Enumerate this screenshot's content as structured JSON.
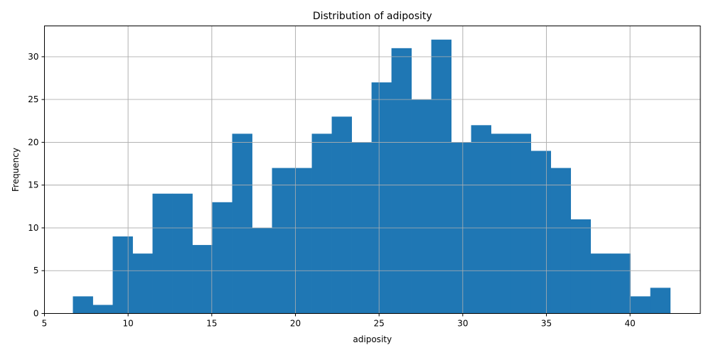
{
  "chart_data": {
    "type": "bar",
    "title": "Distribution of adiposity",
    "xlabel": "adiposity",
    "ylabel": "Frequency",
    "bin_edges": [
      6.7,
      7.89,
      9.08,
      10.27,
      11.46,
      12.65,
      13.84,
      15.03,
      16.22,
      17.41,
      18.6,
      19.79,
      20.98,
      22.17,
      23.36,
      24.55,
      25.74,
      26.93,
      28.12,
      29.31,
      30.5,
      31.69,
      32.88,
      34.07,
      35.26,
      36.45,
      37.64,
      38.83,
      40.02,
      41.21,
      42.4
    ],
    "values": [
      2,
      1,
      9,
      7,
      14,
      14,
      8,
      13,
      21,
      10,
      17,
      17,
      21,
      23,
      20,
      27,
      31,
      25,
      32,
      20,
      22,
      21,
      21,
      19,
      17,
      11,
      7,
      7,
      2,
      3
    ],
    "xlim": [
      5,
      44.2
    ],
    "ylim": [
      0,
      33.6
    ],
    "xticks": [
      5,
      10,
      15,
      20,
      25,
      30,
      35,
      40
    ],
    "yticks": [
      0,
      5,
      10,
      15,
      20,
      25,
      30
    ],
    "grid": true,
    "bar_color": "#1f77b4"
  }
}
